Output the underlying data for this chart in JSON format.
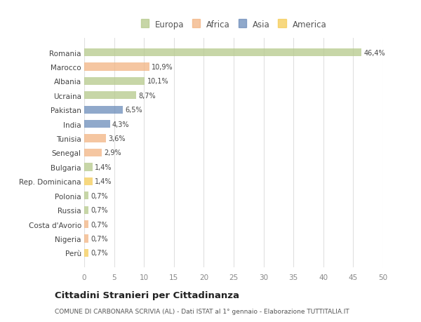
{
  "countries": [
    "Romania",
    "Marocco",
    "Albania",
    "Ucraina",
    "Pakistan",
    "India",
    "Tunisia",
    "Senegal",
    "Bulgaria",
    "Rep. Dominicana",
    "Polonia",
    "Russia",
    "Costa d'Avorio",
    "Nigeria",
    "Perù"
  ],
  "values": [
    46.4,
    10.9,
    10.1,
    8.7,
    6.5,
    4.3,
    3.6,
    2.9,
    1.4,
    1.4,
    0.7,
    0.7,
    0.7,
    0.7,
    0.7
  ],
  "labels": [
    "46,4%",
    "10,9%",
    "10,1%",
    "8,7%",
    "6,5%",
    "4,3%",
    "3,6%",
    "2,9%",
    "1,4%",
    "1,4%",
    "0,7%",
    "0,7%",
    "0,7%",
    "0,7%",
    "0,7%"
  ],
  "continents": [
    "Europa",
    "Africa",
    "Europa",
    "Europa",
    "Asia",
    "Asia",
    "Africa",
    "Africa",
    "Europa",
    "America",
    "Europa",
    "Europa",
    "Africa",
    "Africa",
    "America"
  ],
  "colors": {
    "Europa": "#b5c98a",
    "Africa": "#f2b482",
    "Asia": "#6b8cba",
    "America": "#f5cc55"
  },
  "xlim": [
    0,
    50
  ],
  "xticks": [
    0,
    5,
    10,
    15,
    20,
    25,
    30,
    35,
    40,
    45,
    50
  ],
  "title": "Cittadini Stranieri per Cittadinanza",
  "subtitle": "COMUNE DI CARBONARA SCRIVIA (AL) - Dati ISTAT al 1° gennaio - Elaborazione TUTTITALIA.IT",
  "background_color": "#ffffff",
  "grid_color": "#e0e0e0",
  "bar_alpha": 0.75,
  "legend_order": [
    "Europa",
    "Africa",
    "Asia",
    "America"
  ]
}
